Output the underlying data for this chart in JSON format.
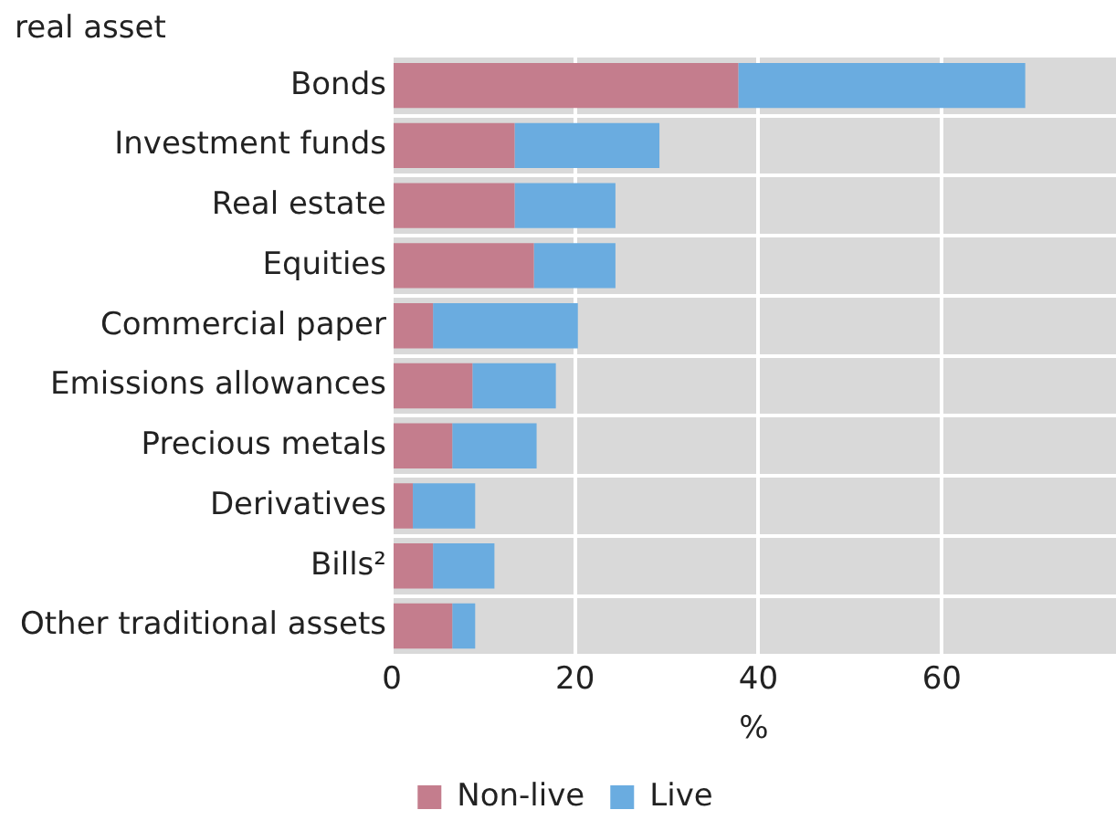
{
  "chart_data": {
    "type": "bar",
    "title": "real asset",
    "orientation": "horizontal",
    "stacked": true,
    "categories": [
      "Bonds",
      "Investment funds",
      "Real estate",
      "Equities",
      "Commercial paper",
      "Emissions allowances",
      "Precious metals",
      "Derivatives",
      "Bills²",
      "Other traditional assets"
    ],
    "series": [
      {
        "name": "Non-live",
        "color": "#c47d8d",
        "values": [
          37.8,
          13.4,
          13.4,
          15.5,
          4.5,
          8.8,
          6.6,
          2.3,
          4.5,
          6.6
        ]
      },
      {
        "name": "Live",
        "color": "#6aace0",
        "values": [
          31.3,
          15.8,
          11.0,
          8.9,
          15.8,
          9.1,
          9.2,
          6.8,
          6.7,
          2.5
        ]
      }
    ],
    "xlabel": "%",
    "xlim": [
      0,
      79
    ],
    "xticks": [
      0,
      20,
      40,
      60
    ],
    "grid": true,
    "legend": "bottom"
  }
}
